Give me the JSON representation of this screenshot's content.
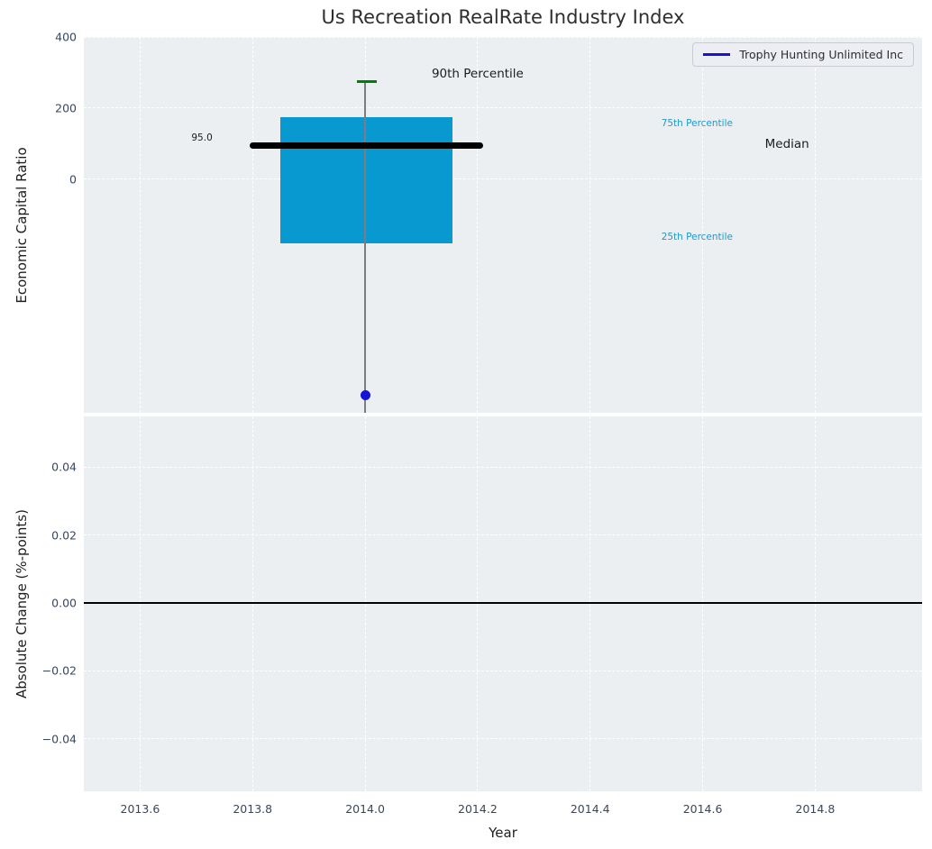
{
  "title": "Us Recreation RealRate Industry Index",
  "legend": {
    "label": "Trophy Hunting Unlimited Inc"
  },
  "colors": {
    "axes_background": "#eceff1",
    "grid": "#ffffff",
    "box_fill": "#0899d0",
    "median_line": "#000000",
    "percentile_cap": "#008000",
    "company_marker": "#1414d6",
    "percentile_text": "#2398c9",
    "tick_text": "#37485e",
    "zero_line": "#000000",
    "whisker": "#7d7d7d"
  },
  "chart_data": [
    {
      "type": "box",
      "subplot": "top",
      "title": "Us Recreation RealRate Industry Index",
      "ylabel": "Economic Capital Ratio",
      "xlim": [
        2013.5,
        2014.99
      ],
      "ylim": [
        -658,
        400
      ],
      "yticks": {
        "values": [
          400,
          200,
          0
        ],
        "labels": [
          "400",
          "200",
          "0"
        ]
      },
      "grid": true,
      "legend_position": "upper right",
      "box": {
        "x_center": 2014.0,
        "p90": 275,
        "p75": 173,
        "median": 95.0,
        "p25": -180,
        "median_label": "95.0",
        "whisker_bottom_clipped_at": -658,
        "box_x_range": [
          2013.85,
          2014.155
        ],
        "median_x_range": [
          2013.795,
          2014.21
        ],
        "cap_x_range": [
          2013.985,
          2014.02
        ]
      },
      "series": [
        {
          "name": "Trophy Hunting Unlimited Inc",
          "type": "scatter",
          "x": [
            2014.0
          ],
          "y": [
            -608
          ]
        }
      ],
      "annotations": [
        {
          "text": "90th Percentile",
          "x": 2014.2,
          "y": 296,
          "size": 13.5,
          "color": "#1c1c1c"
        },
        {
          "text": "75th Percentile",
          "x": 2014.59,
          "y": 156,
          "size": 10.5,
          "color": "#2398c9"
        },
        {
          "text": "Median",
          "x": 2014.75,
          "y": 98,
          "size": 13.5,
          "color": "#1c1c1c"
        },
        {
          "text": "25th Percentile",
          "x": 2014.59,
          "y": -163,
          "size": 10.5,
          "color": "#2398c9"
        },
        {
          "text": "95.0",
          "x": 2013.71,
          "y": 116,
          "size": 10.5,
          "color": "#1c1c1c"
        }
      ]
    },
    {
      "type": "line",
      "subplot": "bottom",
      "ylabel": "Absolute Change (%-points)",
      "xlabel": "Year",
      "xlim": [
        2013.5,
        2014.99
      ],
      "ylim": [
        -0.0555,
        0.0549
      ],
      "xticks": {
        "values": [
          2013.6,
          2013.8,
          2014.0,
          2014.2,
          2014.4,
          2014.6,
          2014.8
        ],
        "labels": [
          "2013.6",
          "2013.8",
          "2014.0",
          "2014.2",
          "2014.4",
          "2014.6",
          "2014.8"
        ]
      },
      "yticks": {
        "values": [
          0.04,
          0.02,
          0,
          -0.02,
          -0.04
        ],
        "labels": [
          "0.04",
          "0.02",
          "0.00",
          "−0.02",
          "−0.04"
        ]
      },
      "grid": true,
      "zero_line": 0.0,
      "series": []
    }
  ]
}
